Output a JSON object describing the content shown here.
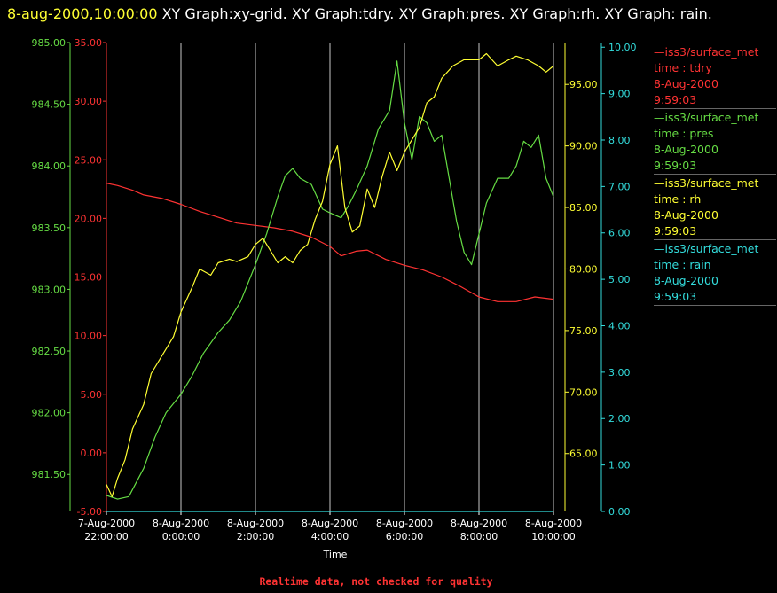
{
  "header": {
    "timestamp": "8-aug-2000,10:00:00",
    "title": "XY Graph:xy-grid.  XY Graph:tdry.  XY Graph:pres.  XY Graph:rh.  XY Graph: rain."
  },
  "footer": {
    "note": "Realtime data, not checked for quality"
  },
  "legend": [
    {
      "source": "—iss3/surface_met",
      "field": "time : tdry",
      "date": "8-Aug-2000",
      "time": "9:59:03",
      "color": "#ff3333"
    },
    {
      "source": "—iss3/surface_met",
      "field": "time : pres",
      "date": "8-Aug-2000",
      "time": "9:59:03",
      "color": "#66dd44"
    },
    {
      "source": "—iss3/surface_met",
      "field": "time : rh",
      "date": "8-Aug-2000",
      "time": "9:59:03",
      "color": "#ffff33"
    },
    {
      "source": "—iss3/surface_met",
      "field": "time : rain",
      "date": "8-Aug-2000",
      "time": "9:59:03",
      "color": "#33dddd"
    }
  ],
  "chart_data": {
    "type": "line",
    "xlabel": "Time",
    "x_ticks": [
      {
        "date": "7-Aug-2000",
        "time": "22:00:00",
        "hours": 22
      },
      {
        "date": "8-Aug-2000",
        "time": "0:00:00",
        "hours": 24
      },
      {
        "date": "8-Aug-2000",
        "time": "2:00:00",
        "hours": 26
      },
      {
        "date": "8-Aug-2000",
        "time": "4:00:00",
        "hours": 28
      },
      {
        "date": "8-Aug-2000",
        "time": "6:00:00",
        "hours": 30
      },
      {
        "date": "8-Aug-2000",
        "time": "8:00:00",
        "hours": 32
      },
      {
        "date": "8-Aug-2000",
        "time": "10:00:00",
        "hours": 34
      }
    ],
    "xlim_hours": [
      22,
      34
    ],
    "grid": "vertical",
    "axes": {
      "tdry": {
        "color": "#ff3333",
        "ylim": [
          -5,
          35
        ],
        "ticks": [
          "-5.00",
          "0.00",
          "5.00",
          "10.00",
          "15.00",
          "20.00",
          "25.00",
          "30.00",
          "35.00"
        ]
      },
      "pres": {
        "color": "#66dd44",
        "ylim": [
          981.2,
          985.0
        ],
        "ticks": [
          "981.50",
          "982.00",
          "982.50",
          "983.00",
          "983.50",
          "984.00",
          "984.50",
          "985.00"
        ]
      },
      "rh": {
        "color": "#ffff33",
        "ylim": [
          60.3,
          98.4
        ],
        "ticks": [
          "65.00",
          "70.00",
          "75.00",
          "80.00",
          "85.00",
          "90.00",
          "95.00"
        ]
      },
      "rain": {
        "color": "#33dddd",
        "ylim": [
          0,
          10.1
        ],
        "ticks": [
          "0.00",
          "1.00",
          "2.00",
          "3.00",
          "4.00",
          "5.00",
          "6.00",
          "7.00",
          "8.00",
          "9.00",
          "10.00"
        ]
      }
    },
    "series": [
      {
        "name": "time : tdry",
        "axis": "tdry",
        "x": [
          22.0,
          22.3,
          22.7,
          23.0,
          23.5,
          24.0,
          24.5,
          25.0,
          25.5,
          26.0,
          26.5,
          27.0,
          27.5,
          28.0,
          28.3,
          28.7,
          29.0,
          29.5,
          30.0,
          30.5,
          31.0,
          31.5,
          32.0,
          32.5,
          33.0,
          33.5,
          34.0
        ],
        "y": [
          23.0,
          22.8,
          22.4,
          22.0,
          21.7,
          21.2,
          20.6,
          20.1,
          19.6,
          19.4,
          19.2,
          18.9,
          18.4,
          17.6,
          16.8,
          17.2,
          17.3,
          16.5,
          16.0,
          15.6,
          15.0,
          14.2,
          13.3,
          12.9,
          12.9,
          13.3,
          13.1
        ]
      },
      {
        "name": "time : pres",
        "axis": "pres",
        "x": [
          22.0,
          22.3,
          22.6,
          23.0,
          23.3,
          23.6,
          24.0,
          24.3,
          24.6,
          25.0,
          25.3,
          25.6,
          26.0,
          26.3,
          26.6,
          26.8,
          27.0,
          27.2,
          27.5,
          27.8,
          28.0,
          28.3,
          28.5,
          28.7,
          29.0,
          29.3,
          29.6,
          29.8,
          30.0,
          30.2,
          30.4,
          30.6,
          30.8,
          31.0,
          31.2,
          31.4,
          31.6,
          31.8,
          32.0,
          32.2,
          32.5,
          32.8,
          33.0,
          33.2,
          33.4,
          33.6,
          33.8,
          34.0
        ],
        "y": [
          981.33,
          981.3,
          981.32,
          981.55,
          981.8,
          982.0,
          982.15,
          982.3,
          982.48,
          982.65,
          982.75,
          982.9,
          983.2,
          983.45,
          983.75,
          983.92,
          983.98,
          983.9,
          983.85,
          983.65,
          983.62,
          983.58,
          983.68,
          983.8,
          984.0,
          984.3,
          984.45,
          984.85,
          984.35,
          984.05,
          984.4,
          984.35,
          984.2,
          984.25,
          983.9,
          983.55,
          983.3,
          983.2,
          983.45,
          983.7,
          983.9,
          983.9,
          984.0,
          984.2,
          984.15,
          984.25,
          983.9,
          983.75
        ]
      },
      {
        "name": "time : rh",
        "axis": "rh",
        "x": [
          22.0,
          22.15,
          22.3,
          22.5,
          22.7,
          23.0,
          23.2,
          23.5,
          23.8,
          24.0,
          24.3,
          24.5,
          24.8,
          25.0,
          25.3,
          25.5,
          25.8,
          26.0,
          26.2,
          26.4,
          26.6,
          26.8,
          27.0,
          27.2,
          27.4,
          27.6,
          27.8,
          28.0,
          28.2,
          28.4,
          28.6,
          28.8,
          29.0,
          29.2,
          29.4,
          29.6,
          29.8,
          30.0,
          30.2,
          30.4,
          30.6,
          30.8,
          31.0,
          31.3,
          31.6,
          32.0,
          32.2,
          32.5,
          32.8,
          33.0,
          33.3,
          33.6,
          33.8,
          34.0
        ],
        "y": [
          62.5,
          61.5,
          63.0,
          64.5,
          67.0,
          69.0,
          71.5,
          73.0,
          74.5,
          76.5,
          78.5,
          80.0,
          79.5,
          80.5,
          80.8,
          80.6,
          81.0,
          82.0,
          82.5,
          81.5,
          80.5,
          81.0,
          80.5,
          81.5,
          82.0,
          84.0,
          85.5,
          88.5,
          90.0,
          85.0,
          83.0,
          83.5,
          86.5,
          85.0,
          87.5,
          89.5,
          88.0,
          89.5,
          90.5,
          91.5,
          93.5,
          94.0,
          95.5,
          96.5,
          97.0,
          97.0,
          97.5,
          96.5,
          97.0,
          97.3,
          97.0,
          96.5,
          96.0,
          96.5
        ]
      },
      {
        "name": "time : rain",
        "axis": "rain",
        "x": [
          22.0,
          34.0
        ],
        "y": [
          0.0,
          0.0
        ]
      }
    ]
  }
}
